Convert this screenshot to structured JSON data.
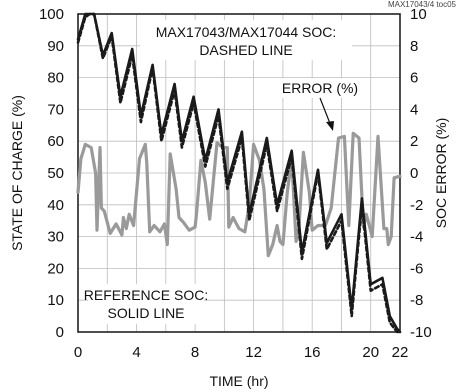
{
  "chart_data": {
    "type": "line",
    "figure_id": "MAX17043/4 toc05",
    "xlabel": "TIME (hr)",
    "ylabel_left": "STATE OF CHARGE (%)",
    "ylabel_right": "SOC ERROR (%)",
    "xlim": [
      0,
      22
    ],
    "ylim_left": [
      0,
      100
    ],
    "ylim_right": [
      -10,
      10
    ],
    "x_ticks": [
      "0",
      "4",
      "8",
      "12",
      "16",
      "20",
      "22"
    ],
    "y_left_ticks": [
      "0",
      "10",
      "20",
      "30",
      "40",
      "50",
      "60",
      "70",
      "80",
      "90",
      "100"
    ],
    "y_right_ticks": [
      "-10",
      "-8",
      "-6",
      "-4",
      "-2",
      "0",
      "2",
      "4",
      "6",
      "8",
      "10"
    ],
    "grid": true,
    "annotations": {
      "dashed_label_1": "MAX17043/MAX17044 SOC:",
      "dashed_label_2": "DASHED LINE",
      "error_label": "ERROR (%)",
      "solid_label_1": "REFERENCE SOC:",
      "solid_label_2": "SOLID LINE"
    },
    "series": [
      {
        "axis": "left",
        "style": "solid",
        "color": "#1a1a1a",
        "x": [
          0.0,
          0.5,
          0.8,
          1.1,
          1.7,
          2.3,
          2.9,
          3.7,
          4.3,
          5.1,
          5.7,
          6.6,
          7.1,
          7.9,
          8.7,
          9.6,
          10.2,
          11.2,
          11.7,
          12.9,
          13.6,
          14.6,
          15.3,
          16.4,
          17.0,
          18.0,
          18.7,
          19.4,
          20.0,
          20.8,
          21.3,
          21.8,
          22.0
        ],
        "y": [
          92,
          100,
          100,
          100,
          87,
          94,
          74,
          89,
          68,
          84,
          62,
          78,
          60,
          74,
          54,
          70,
          47,
          63,
          37,
          61,
          40,
          57,
          25,
          51,
          28,
          37,
          7,
          42,
          15,
          17,
          5,
          1,
          0
        ]
      },
      {
        "axis": "left",
        "style": "dashed",
        "color": "#1a1a1a",
        "x": [
          0.0,
          0.5,
          0.8,
          1.1,
          1.7,
          2.3,
          2.9,
          3.7,
          4.3,
          5.1,
          5.7,
          6.6,
          7.1,
          7.9,
          8.7,
          9.6,
          10.2,
          11.2,
          11.7,
          12.9,
          13.6,
          14.6,
          15.3,
          16.4,
          17.0,
          18.0,
          18.7,
          19.4,
          20.0,
          20.8,
          21.3,
          21.8,
          22.0
        ],
        "y": [
          91,
          99,
          100,
          100,
          86,
          93,
          72,
          87,
          66,
          83,
          60,
          76,
          58,
          72,
          52,
          68,
          45,
          61,
          35,
          59,
          38,
          55,
          23,
          50,
          26,
          35,
          5,
          40,
          13,
          15,
          3,
          0,
          0
        ]
      },
      {
        "axis": "right",
        "style": "solid",
        "color": "#9a9a9a",
        "x": [
          0.0,
          0.2,
          0.5,
          0.9,
          1.2,
          1.3,
          1.5,
          1.6,
          1.8,
          2.2,
          2.6,
          3.0,
          3.1,
          3.3,
          3.5,
          3.8,
          4.2,
          4.6,
          4.7,
          4.9,
          5.2,
          5.6,
          5.9,
          6.1,
          6.3,
          6.7,
          6.9,
          7.2,
          7.6,
          8.0,
          8.1,
          8.4,
          8.7,
          9.0,
          9.3,
          9.5,
          9.9,
          10.2,
          10.3,
          10.6,
          11.0,
          11.4,
          11.7,
          12.0,
          12.4,
          12.7,
          13.0,
          13.3,
          13.6,
          13.8,
          14.0,
          14.3,
          14.6,
          14.9,
          15.1,
          15.4,
          15.8,
          16.0,
          16.4,
          16.9,
          17.3,
          17.8,
          18.2,
          18.5,
          18.8,
          19.2,
          19.5,
          19.7,
          20.1,
          20.5,
          20.9,
          21.1,
          21.2,
          21.4,
          21.6,
          22.0
        ],
        "y": [
          -1.2,
          0.9,
          1.8,
          1.6,
          0.0,
          -3.6,
          1.6,
          -2.2,
          -2.4,
          -3.8,
          -3.2,
          -3.9,
          -2.8,
          -3.5,
          -2.6,
          -3.3,
          0.9,
          1.8,
          0.6,
          -3.7,
          -3.3,
          -3.7,
          -3.2,
          -4.5,
          1.2,
          -1.0,
          -2.8,
          -3.1,
          -3.6,
          -3.4,
          -2.5,
          0.8,
          -0.6,
          -2.9,
          0.0,
          1.9,
          1.6,
          1.6,
          -3.4,
          -2.8,
          -3.5,
          -3.7,
          -2.0,
          1.8,
          0.8,
          -1.0,
          -5.2,
          -4.5,
          -3.3,
          -4.3,
          -4.5,
          -1.2,
          0.9,
          -4.3,
          -3.4,
          1.3,
          -1.2,
          -3.6,
          -3.3,
          -3.3,
          -2.2,
          2.2,
          2.3,
          -3.3,
          2.5,
          2.2,
          -3.4,
          -2.6,
          -4.0,
          2.3,
          -3.5,
          -3.5,
          -4.5,
          -4.0,
          -0.3,
          -0.2
        ]
      }
    ]
  }
}
